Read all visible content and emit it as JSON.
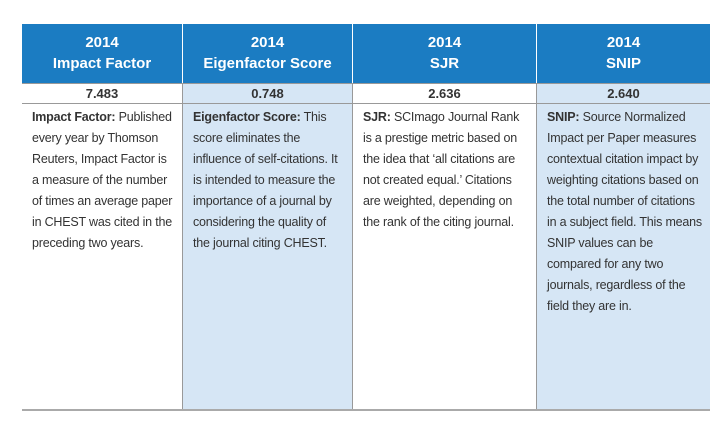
{
  "table": {
    "columns": [
      {
        "year": "2014",
        "name": "Impact Factor",
        "value": "7.483",
        "label": "Impact Factor:",
        "text": "Published every year by Thomson Reuters, Impact Factor is a measure of the number of times an average paper in CHEST was cited in the preceding two years."
      },
      {
        "year": "2014",
        "name": "Eigenfactor Score",
        "value": "0.748",
        "label": "Eigenfactor Score:",
        "text": "This score eliminates the influence of self-citations. It is intended to measure the importance of a journal by considering the quality of the journal citing CHEST."
      },
      {
        "year": "2014",
        "name": "SJR",
        "value": "2.636",
        "label": "SJR:",
        "text": "SCImago Journal Rank is a prestige metric based on the idea that ‘all citations are not created equal.’ Citations are weighted, depending on the rank of the citing journal."
      },
      {
        "year": "2014",
        "name": "SNIP",
        "value": "2.640",
        "label": "SNIP:",
        "text": "Source Normalized Impact per Paper measures contextual citation impact by weighting citations based on the total number of citations in a subject field. This means SNIP values can be compared for any two journals, regardless of the field they are in."
      }
    ]
  }
}
